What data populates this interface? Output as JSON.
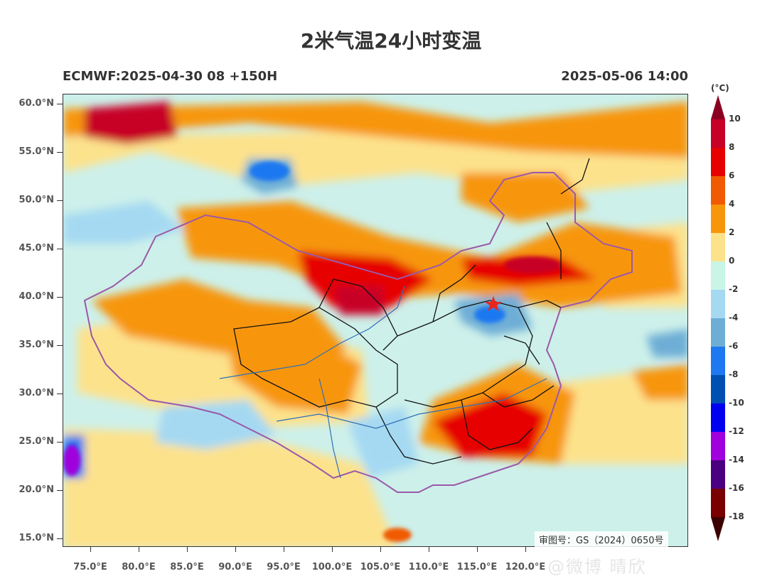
{
  "header": {
    "title": "2米气温24小时变温",
    "model_run": "ECMWF:2025-04-30 08 +150H",
    "valid_time": "2025-05-06 14:00"
  },
  "axes": {
    "lat_labels": [
      "60.0°N",
      "55.0°N",
      "50.0°N",
      "45.0°N",
      "40.0°N",
      "35.0°N",
      "30.0°N",
      "25.0°N",
      "20.0°N",
      "15.0°N"
    ],
    "lon_labels": [
      "75.0°E",
      "80.0°E",
      "85.0°E",
      "90.0°E",
      "95.0°E",
      "100.0°E",
      "105.0°E",
      "110.0°E",
      "115.0°E",
      "120.0°E"
    ]
  },
  "colorbar": {
    "unit": "(°C)",
    "labels": [
      "10",
      "8",
      "6",
      "4",
      "2",
      "0",
      "-2",
      "-4",
      "-6",
      "-8",
      "-10",
      "-12",
      "-14",
      "-16",
      "-18"
    ],
    "colors": [
      "#8b0020",
      "#c70028",
      "#e60000",
      "#f05a00",
      "#f7960a",
      "#fde28c",
      "#c8f5e6",
      "#a5d9f2",
      "#6eaed6",
      "#1e78f0",
      "#0050b4",
      "#0000f0",
      "#a000dc",
      "#4b0082",
      "#7a0000",
      "#3c0000"
    ]
  },
  "map": {
    "review_number": "审图号：GS（2024）0650号",
    "marker": "star",
    "marker_color": "#e8261e",
    "border_color": "#111111",
    "country_border_color": "#9b59a8",
    "river_color": "#2f6fb7"
  },
  "watermark": "@微博 晴欣"
}
